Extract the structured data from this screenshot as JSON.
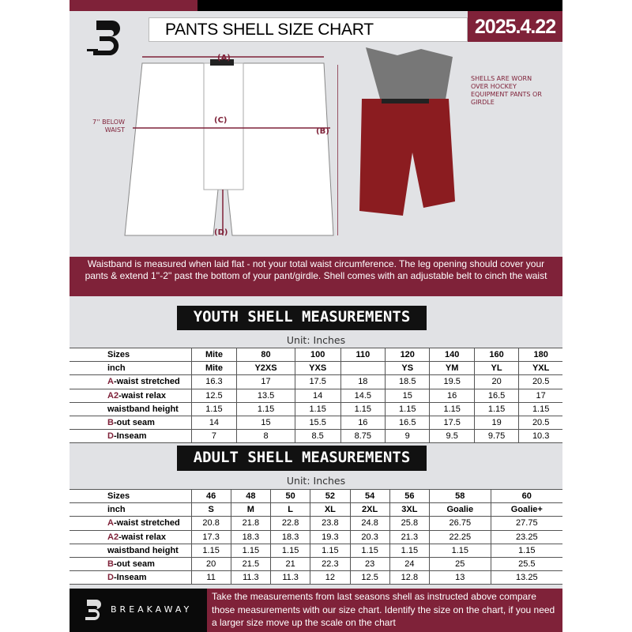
{
  "header": {
    "title": "PANTS SHELL SIZE CHART",
    "date": "2025.4.22"
  },
  "diagram": {
    "label_a": "(A)",
    "label_b": "(B)",
    "label_c": "(C)",
    "label_d": "(D)",
    "below_waist_note": "7'' BELOW WAIST",
    "shell_note": "SHELLS ARE WORN OVER HOCKEY EQUIPMENT PANTS OR GIRDLE"
  },
  "banner": {
    "text": "Waistband is measured when laid flat - not your total waist circumference. The leg opening should cover your pants & extend 1''-2'' past the bottom of your pant/girdle. Shell comes with an adjustable belt to cinch the waist"
  },
  "youth": {
    "heading": "YOUTH SHELL MEASUREMENTS",
    "unit": "Unit: Inches",
    "rows": [
      {
        "prefix": "",
        "label": "Sizes",
        "values": [
          "Mite",
          "80",
          "100",
          "110",
          "120",
          "140",
          "160",
          "180"
        ]
      },
      {
        "prefix": "",
        "label": "inch",
        "values": [
          "Mite",
          "Y2XS",
          "YXS",
          "",
          "YS",
          "YM",
          "YL",
          "YXL"
        ]
      },
      {
        "prefix": "A",
        "label": "-waist stretched",
        "values": [
          "16.3",
          "17",
          "17.5",
          "18",
          "18.5",
          "19.5",
          "20",
          "20.5"
        ]
      },
      {
        "prefix": "A2",
        "label": "-waist relax",
        "values": [
          "12.5",
          "13.5",
          "14",
          "14.5",
          "15",
          "16",
          "16.5",
          "17"
        ]
      },
      {
        "prefix": "",
        "label": "waistband height",
        "values": [
          "1.15",
          "1.15",
          "1.15",
          "1.15",
          "1.15",
          "1.15",
          "1.15",
          "1.15"
        ]
      },
      {
        "prefix": "B",
        "label": "-out seam",
        "values": [
          "14",
          "15",
          "15.5",
          "16",
          "16.5",
          "17.5",
          "19",
          "20.5"
        ]
      },
      {
        "prefix": "D",
        "label": "-Inseam",
        "values": [
          "7",
          "8",
          "8.5",
          "8.75",
          "9",
          "9.5",
          "9.75",
          "10.3"
        ]
      }
    ]
  },
  "adult": {
    "heading": "ADULT SHELL MEASUREMENTS",
    "unit": "Unit: Inches",
    "rows": [
      {
        "prefix": "",
        "label": "Sizes",
        "values": [
          "46",
          "48",
          "50",
          "52",
          "54",
          "56",
          "58",
          "60"
        ]
      },
      {
        "prefix": "",
        "label": "inch",
        "values": [
          "S",
          "M",
          "L",
          "XL",
          "2XL",
          "3XL",
          "Goalie",
          "Goalie+"
        ]
      },
      {
        "prefix": "A",
        "label": "-waist stretched",
        "values": [
          "20.8",
          "21.8",
          "22.8",
          "23.8",
          "24.8",
          "25.8",
          "26.75",
          "27.75"
        ]
      },
      {
        "prefix": "A2",
        "label": "-waist relax",
        "values": [
          "17.3",
          "18.3",
          "18.3",
          "19.3",
          "20.3",
          "21.3",
          "22.25",
          "23.25"
        ]
      },
      {
        "prefix": "",
        "label": "waistband height",
        "values": [
          "1.15",
          "1.15",
          "1.15",
          "1.15",
          "1.15",
          "1.15",
          "1.15",
          "1.15"
        ]
      },
      {
        "prefix": "B",
        "label": "-out seam",
        "values": [
          "20",
          "21.5",
          "21",
          "22.3",
          "23",
          "24",
          "25",
          "25.5"
        ]
      },
      {
        "prefix": "D",
        "label": "-Inseam",
        "values": [
          "11",
          "11.3",
          "11.3",
          "12",
          "12.5",
          "12.8",
          "13",
          "13.25"
        ]
      }
    ]
  },
  "footer": {
    "brand": "BREAKAWAY",
    "text": "Take the measurements from last seasons shell as instructed above compare those measurements  with our size chart. Identify the size on the chart, if you need a larger size move up the scale on the chart"
  },
  "colors": {
    "maroon": "#7f2239",
    "black": "#000000",
    "background": "#e1e2e5"
  }
}
